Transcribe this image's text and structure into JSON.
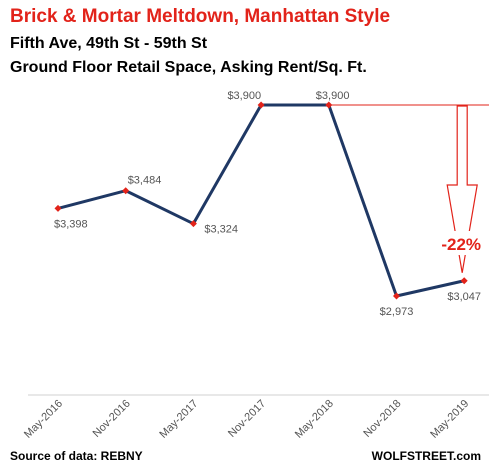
{
  "header": {
    "title": "Brick & Mortar Meltdown, Manhattan Style",
    "subtitle_line1": "Fifth Ave, 49th St - 59th St",
    "subtitle_line2": "Ground Floor Retail Space, Asking Rent/Sq. Ft."
  },
  "footer": {
    "source": "Source of data: REBNY",
    "brand": "WOLFSTREET.com"
  },
  "colors": {
    "title": "#e2231a",
    "line": "#1f3864",
    "marker": "#e2231a",
    "annotation": "#e2231a"
  },
  "chart_data": {
    "type": "line",
    "title": "Brick & Mortar Meltdown, Manhattan Style",
    "categories": [
      "May-2016",
      "Nov-2016",
      "May-2017",
      "Nov-2017",
      "May-2018",
      "Nov-2018",
      "May-2019"
    ],
    "values": [
      3398,
      3484,
      3324,
      3900,
      3900,
      2973,
      3047
    ],
    "data_labels": [
      "$3,398",
      "$3,484",
      "$3,324",
      "$3,900",
      "$3,900",
      "$2,973",
      "$3,047"
    ],
    "ylim": [
      2800,
      4000
    ],
    "grid": false,
    "legend": "none",
    "annotation": {
      "text": "-22%",
      "from_value": 3900,
      "to_value": 3047
    }
  }
}
